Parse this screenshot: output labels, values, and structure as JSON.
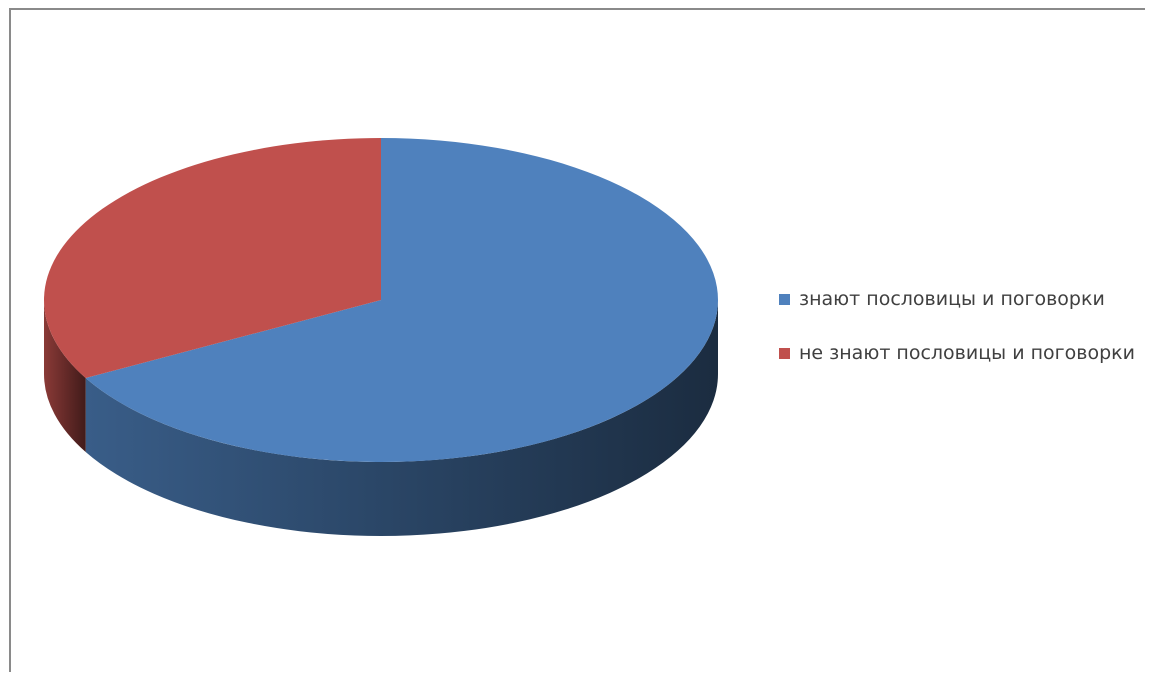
{
  "chart_data": {
    "type": "pie",
    "style": "3d",
    "slices": [
      {
        "label": "знают пословицы и поговорки",
        "value": 67,
        "color": "#4f81bd"
      },
      {
        "label": "не знают пословицы и поговорки",
        "value": 33,
        "color": "#c0504d"
      }
    ],
    "legend_position": "right"
  }
}
